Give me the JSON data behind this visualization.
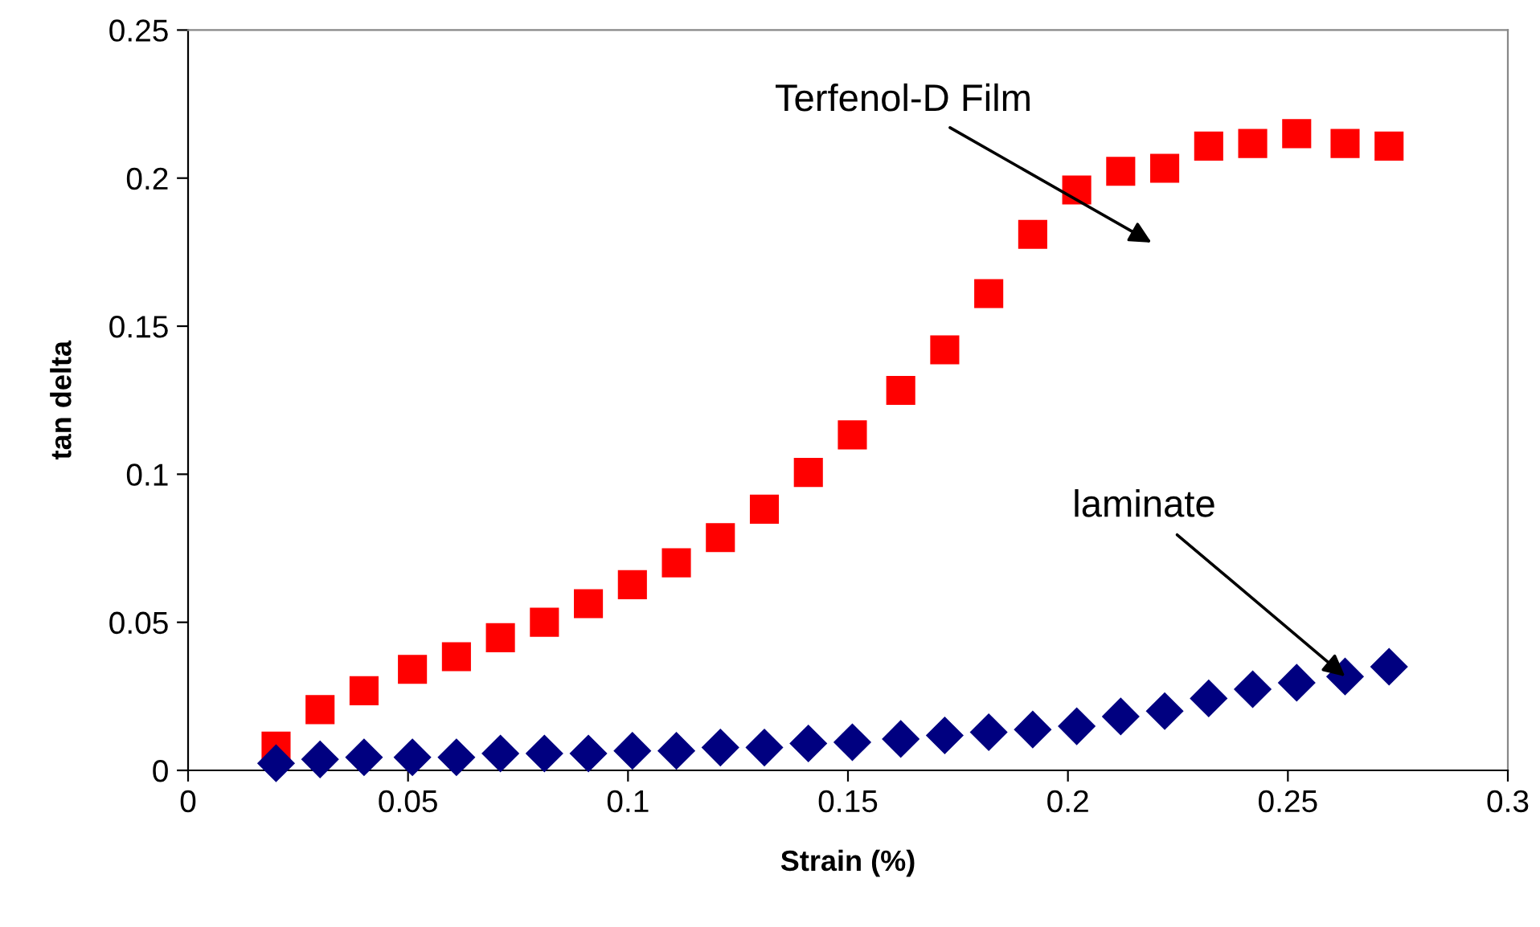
{
  "chart_data": {
    "type": "scatter",
    "xlabel": "Strain (%)",
    "ylabel": "tan delta",
    "xlim": [
      0,
      0.3
    ],
    "xticks": [
      0,
      0.05,
      0.1,
      0.15,
      0.2,
      0.25,
      0.3
    ],
    "ylim": [
      0,
      0.25
    ],
    "yticks": [
      0,
      0.05,
      0.1,
      0.15,
      0.2,
      0.25
    ],
    "grid": false,
    "legend": false,
    "series": [
      {
        "color": "#ff0000",
        "marker": "square",
        "x": [
          0.02,
          0.03,
          0.04,
          0.051,
          0.061,
          0.071,
          0.081,
          0.091,
          0.101,
          0.111,
          0.121,
          0.131,
          0.141,
          0.151,
          0.162,
          0.172,
          0.182,
          0.192,
          0.202,
          0.212,
          0.222,
          0.232,
          0.242,
          0.252,
          0.263,
          0.273
        ],
        "values": [
          0.0082,
          0.0205,
          0.0269,
          0.0341,
          0.0384,
          0.0448,
          0.05,
          0.0563,
          0.0627,
          0.0701,
          0.0786,
          0.0882,
          0.1006,
          0.1133,
          0.1283,
          0.142,
          0.161,
          0.181,
          0.196,
          0.2023,
          0.2033,
          0.2108,
          0.2117,
          0.215,
          0.2117,
          0.2108
        ]
      },
      {
        "color": "#000080",
        "marker": "diamond",
        "x": [
          0.02,
          0.03,
          0.04,
          0.051,
          0.061,
          0.071,
          0.081,
          0.091,
          0.101,
          0.111,
          0.121,
          0.131,
          0.141,
          0.151,
          0.162,
          0.172,
          0.182,
          0.192,
          0.202,
          0.212,
          0.222,
          0.232,
          0.242,
          0.252,
          0.263,
          0.273
        ],
        "values": [
          0.0024,
          0.0037,
          0.0044,
          0.0044,
          0.0044,
          0.0057,
          0.0057,
          0.0057,
          0.0066,
          0.0066,
          0.0077,
          0.0077,
          0.0091,
          0.0095,
          0.0106,
          0.0118,
          0.0129,
          0.0138,
          0.0149,
          0.0182,
          0.02,
          0.0243,
          0.0274,
          0.0296,
          0.0317,
          0.035
        ]
      }
    ],
    "annotations": [
      "Terfenol-D Film",
      {
        "text": "laminate",
        "x": 0.263,
        "y": 0.0317
      }
    ]
  }
}
